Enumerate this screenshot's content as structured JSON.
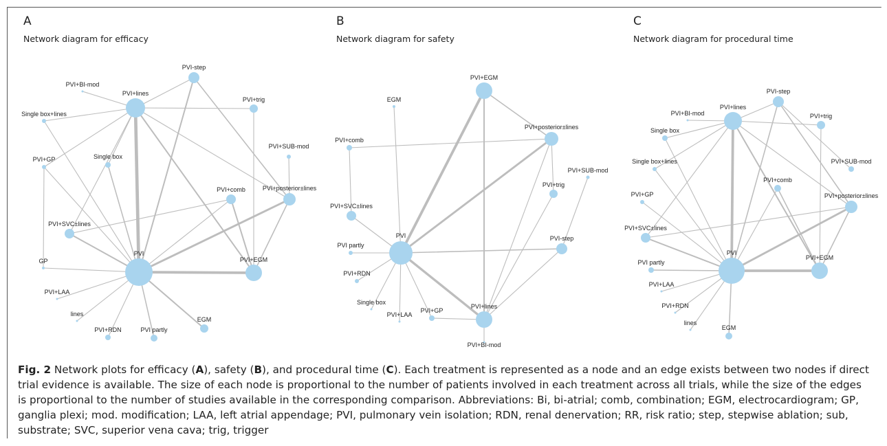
{
  "panels": [
    {
      "letter": "A",
      "title": "Network diagram for efficacy",
      "nodes": [
        {
          "id": "PVI-step",
          "label": "PVI-step"
        },
        {
          "id": "PVI+BI-mod",
          "label": "PVI+BI-mod"
        },
        {
          "id": "PVI+lines",
          "label": "PVI+lines"
        },
        {
          "id": "PVI+trig",
          "label": "PVI+trig"
        },
        {
          "id": "Single box+lines",
          "label": "Single box+lines"
        },
        {
          "id": "PVI+SUB-mod",
          "label": "PVI+SUB-mod"
        },
        {
          "id": "PVI+GP",
          "label": "PVI+GP"
        },
        {
          "id": "Single box",
          "label": "Single box"
        },
        {
          "id": "PVI+comb",
          "label": "PVI+comb"
        },
        {
          "id": "PVI+posterior±lines",
          "label": "PVI+posterior±lines"
        },
        {
          "id": "PVI+SVC±lines",
          "label": "PVI+SVC±lines"
        },
        {
          "id": "PVI",
          "label": "PVI"
        },
        {
          "id": "GP",
          "label": "GP"
        },
        {
          "id": "PVI+EGM",
          "label": "PVI+EGM"
        },
        {
          "id": "PVI+LAA",
          "label": "PVI+LAA"
        },
        {
          "id": "lines",
          "label": "lines"
        },
        {
          "id": "EGM",
          "label": "EGM"
        },
        {
          "id": "PVI+RDN",
          "label": "PVI+RDN"
        },
        {
          "id": "PVI partly",
          "label": "PVI partly"
        }
      ],
      "edges": [
        {
          "source": "PVI",
          "target": "PVI+lines",
          "weight": 5
        },
        {
          "source": "PVI",
          "target": "PVI+EGM",
          "weight": 4
        },
        {
          "source": "PVI",
          "target": "PVI+posterior±lines",
          "weight": 3
        },
        {
          "source": "PVI",
          "target": "PVI-step",
          "weight": 2
        },
        {
          "source": "PVI",
          "target": "PVI+SVC±lines",
          "weight": 2
        },
        {
          "source": "PVI",
          "target": "EGM",
          "weight": 2
        },
        {
          "source": "PVI",
          "target": "PVI partly",
          "weight": 1.5
        },
        {
          "source": "PVI",
          "target": "PVI+GP",
          "weight": 1
        },
        {
          "source": "PVI",
          "target": "Single box",
          "weight": 1.5
        },
        {
          "source": "PVI",
          "target": "Single box+lines",
          "weight": 1
        },
        {
          "source": "PVI",
          "target": "GP",
          "weight": 1
        },
        {
          "source": "PVI",
          "target": "PVI+LAA",
          "weight": 1
        },
        {
          "source": "PVI",
          "target": "lines",
          "weight": 1
        },
        {
          "source": "PVI",
          "target": "PVI+RDN",
          "weight": 1
        },
        {
          "source": "PVI",
          "target": "PVI+comb",
          "weight": 1
        },
        {
          "source": "PVI+lines",
          "target": "PVI+EGM",
          "weight": 2
        },
        {
          "source": "PVI+lines",
          "target": "PVI-step",
          "weight": 1
        },
        {
          "source": "PVI+lines",
          "target": "PVI+trig",
          "weight": 1
        },
        {
          "source": "PVI+lines",
          "target": "PVI+BI-mod",
          "weight": 1
        },
        {
          "source": "PVI+lines",
          "target": "Single box+lines",
          "weight": 1
        },
        {
          "source": "PVI+lines",
          "target": "Single box",
          "weight": 1
        },
        {
          "source": "PVI+lines",
          "target": "PVI+GP",
          "weight": 1
        },
        {
          "source": "PVI+lines",
          "target": "PVI+SVC±lines",
          "weight": 1
        },
        {
          "source": "PVI+lines",
          "target": "PVI+posterior±lines",
          "weight": 1
        },
        {
          "source": "PVI-step",
          "target": "PVI+posterior±lines",
          "weight": 1.5
        },
        {
          "source": "PVI+trig",
          "target": "PVI+EGM",
          "weight": 1
        },
        {
          "source": "PVI+SUB-mod",
          "target": "PVI+posterior±lines",
          "weight": 1
        },
        {
          "source": "PVI+comb",
          "target": "PVI+EGM",
          "weight": 2
        },
        {
          "source": "PVI+comb",
          "target": "PVI+SVC±lines",
          "weight": 1
        },
        {
          "source": "PVI+posterior±lines",
          "target": "PVI+EGM",
          "weight": 1.5
        },
        {
          "source": "PVI+GP",
          "target": "GP",
          "weight": 1
        }
      ]
    },
    {
      "letter": "B",
      "title": "Network diagram for safety",
      "nodes": [
        {
          "id": "PVI+EGM",
          "label": "PVI+EGM"
        },
        {
          "id": "EGM",
          "label": "EGM"
        },
        {
          "id": "PVI+posterior±lines",
          "label": "PVI+posterior±lines"
        },
        {
          "id": "PVI+comb",
          "label": "PVI+comb"
        },
        {
          "id": "PVI+SUB-mod",
          "label": "PVI+SUB-mod"
        },
        {
          "id": "PVI+trig",
          "label": "PVI+trig"
        },
        {
          "id": "PVI+SVC±lines",
          "label": "PVI+SVC±lines"
        },
        {
          "id": "PVI",
          "label": "PVI"
        },
        {
          "id": "PVI-step",
          "label": "PVI-step"
        },
        {
          "id": "PVI partly",
          "label": "PVI partly"
        },
        {
          "id": "PVI+RDN",
          "label": "PVI+RDN"
        },
        {
          "id": "Single box",
          "label": "Single box"
        },
        {
          "id": "PVI+lines",
          "label": "PVI+lines"
        },
        {
          "id": "PVI+GP",
          "label": "PVI+GP"
        },
        {
          "id": "PVI+LAA",
          "label": "PVI+LAA"
        },
        {
          "id": "PVI+BI-mod",
          "label": "PVI+BI-mod"
        }
      ],
      "edges": [
        {
          "source": "PVI",
          "target": "PVI+EGM",
          "weight": 4
        },
        {
          "source": "PVI",
          "target": "PVI+posterior±lines",
          "weight": 3
        },
        {
          "source": "PVI",
          "target": "PVI+lines",
          "weight": 3.5
        },
        {
          "source": "PVI",
          "target": "PVI-step",
          "weight": 1.5
        },
        {
          "source": "PVI",
          "target": "PVI+SVC±lines",
          "weight": 1
        },
        {
          "source": "PVI",
          "target": "PVI partly",
          "weight": 1
        },
        {
          "source": "PVI",
          "target": "PVI+RDN",
          "weight": 1
        },
        {
          "source": "PVI",
          "target": "Single box",
          "weight": 1
        },
        {
          "source": "PVI",
          "target": "PVI+LAA",
          "weight": 1
        },
        {
          "source": "PVI",
          "target": "PVI+GP",
          "weight": 1
        },
        {
          "source": "PVI+EGM",
          "target": "PVI+lines",
          "weight": 2
        },
        {
          "source": "PVI+EGM",
          "target": "PVI+posterior±lines",
          "weight": 1.5
        },
        {
          "source": "PVI+comb",
          "target": "PVI+posterior±lines",
          "weight": 1
        },
        {
          "source": "PVI+comb",
          "target": "PVI+SVC±lines",
          "weight": 1
        },
        {
          "source": "PVI+posterior±lines",
          "target": "PVI+lines",
          "weight": 1
        },
        {
          "source": "PVI+posterior±lines",
          "target": "PVI+trig",
          "weight": 1
        },
        {
          "source": "PVI+trig",
          "target": "PVI+lines",
          "weight": 1
        },
        {
          "source": "PVI+SUB-mod",
          "target": "PVI-step",
          "weight": 1
        },
        {
          "source": "PVI-step",
          "target": "PVI+lines",
          "weight": 1
        },
        {
          "source": "EGM",
          "target": "PVI",
          "weight": 1
        },
        {
          "source": "PVI+GP",
          "target": "PVI+lines",
          "weight": 1
        },
        {
          "source": "PVI+lines",
          "target": "PVI+BI-mod",
          "weight": 1
        }
      ]
    },
    {
      "letter": "C",
      "title": "Network diagram for procedural time",
      "nodes": [
        {
          "id": "PVI-step",
          "label": "PVI-step"
        },
        {
          "id": "PVI+BI-mod",
          "label": "PVI+BI-mod"
        },
        {
          "id": "PVI+lines",
          "label": "PVI+lines"
        },
        {
          "id": "PVI+trig",
          "label": "PVI+trig"
        },
        {
          "id": "Single box",
          "label": "Single box"
        },
        {
          "id": "Single box+lines",
          "label": "Single box+lines"
        },
        {
          "id": "PVI+SUB-mod",
          "label": "PVI+SUB-mod"
        },
        {
          "id": "PVI+comb",
          "label": "PVI+comb"
        },
        {
          "id": "PVI+GP",
          "label": "PVI+GP"
        },
        {
          "id": "PVI+posterior±lines",
          "label": "PVI+posterior±lines"
        },
        {
          "id": "PVI+SVC±lines",
          "label": "PVI+SVC±lines"
        },
        {
          "id": "PVI",
          "label": "PVI"
        },
        {
          "id": "PVI+EGM",
          "label": "PVI+EGM"
        },
        {
          "id": "PVI partly",
          "label": "PVI partly"
        },
        {
          "id": "PVI+LAA",
          "label": "PVI+LAA"
        },
        {
          "id": "PVI+RDN",
          "label": "PVI+RDN"
        },
        {
          "id": "lines",
          "label": "lines"
        },
        {
          "id": "EGM",
          "label": "EGM"
        }
      ],
      "edges": [
        {
          "source": "PVI",
          "target": "PVI+lines",
          "weight": 4
        },
        {
          "source": "PVI",
          "target": "PVI+EGM",
          "weight": 4
        },
        {
          "source": "PVI",
          "target": "PVI+posterior±lines",
          "weight": 3
        },
        {
          "source": "PVI",
          "target": "PVI+SVC±lines",
          "weight": 2
        },
        {
          "source": "PVI",
          "target": "PVI-step",
          "weight": 1.5
        },
        {
          "source": "PVI",
          "target": "PVI partly",
          "weight": 1.5
        },
        {
          "source": "PVI",
          "target": "EGM",
          "weight": 1.5
        },
        {
          "source": "PVI",
          "target": "Single box",
          "weight": 1
        },
        {
          "source": "PVI",
          "target": "Single box+lines",
          "weight": 1
        },
        {
          "source": "PVI",
          "target": "PVI+GP",
          "weight": 1
        },
        {
          "source": "PVI",
          "target": "PVI+comb",
          "weight": 1
        },
        {
          "source": "PVI",
          "target": "PVI+LAA",
          "weight": 1
        },
        {
          "source": "PVI",
          "target": "PVI+RDN",
          "weight": 1
        },
        {
          "source": "PVI",
          "target": "lines",
          "weight": 1
        },
        {
          "source": "PVI+lines",
          "target": "PVI+EGM",
          "weight": 2
        },
        {
          "source": "PVI+lines",
          "target": "PVI-step",
          "weight": 1
        },
        {
          "source": "PVI+lines",
          "target": "PVI+trig",
          "weight": 1
        },
        {
          "source": "PVI+lines",
          "target": "PVI+BI-mod",
          "weight": 1
        },
        {
          "source": "PVI+lines",
          "target": "Single box",
          "weight": 1
        },
        {
          "source": "PVI+lines",
          "target": "Single box+lines",
          "weight": 1
        },
        {
          "source": "PVI+lines",
          "target": "PVI+SVC±lines",
          "weight": 1
        },
        {
          "source": "PVI+lines",
          "target": "PVI+posterior±lines",
          "weight": 1
        },
        {
          "source": "PVI-step",
          "target": "PVI+posterior±lines",
          "weight": 1.5
        },
        {
          "source": "PVI+trig",
          "target": "PVI+EGM",
          "weight": 1
        },
        {
          "source": "PVI+SUB-mod",
          "target": "PVI-step",
          "weight": 1
        },
        {
          "source": "PVI+comb",
          "target": "PVI+EGM",
          "weight": 1.5
        },
        {
          "source": "PVI+posterior±lines",
          "target": "PVI+EGM",
          "weight": 1.5
        },
        {
          "source": "PVI+SVC±lines",
          "target": "PVI+posterior±lines",
          "weight": 1
        }
      ]
    }
  ],
  "caption": {
    "fig_label": "Fig. 2",
    "text_parts": [
      {
        "text": "  Network plots for efficacy (",
        "bold": false
      },
      {
        "text": "A",
        "bold": true
      },
      {
        "text": "), safety (",
        "bold": false
      },
      {
        "text": "B",
        "bold": true
      },
      {
        "text": "), and procedural time (",
        "bold": false
      },
      {
        "text": "C",
        "bold": true
      },
      {
        "text": "). Each treatment is represented as a node and an edge exists between two nodes if direct trial evidence is available. The size of each node is proportional to the number of patients involved in each treatment across all trials, while the size of the edges is proportional to the number of studies available in the corresponding comparison. Abbreviations: Bi, bi-atrial; comb, combination; EGM, electrocardiogram; GP, ganglia plexi; mod. modification; LAA, left atrial appendage; PVI, pulmonary vein isolation; RDN, renal denervation; RR, risk ratio; step, stepwise ablation; sub, substrate; SVC, superior vena cava; trig, trigger",
        "bold": false
      }
    ]
  },
  "colors": {
    "node_fill": "#a9d4ee",
    "edge_stroke": "#bdbdbd"
  }
}
